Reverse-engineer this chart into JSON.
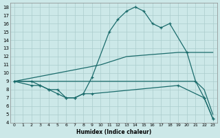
{
  "bg_color": "#cce8e8",
  "grid_color": "#aacccc",
  "line_color": "#1a6b6b",
  "xlabel": "Humidex (Indice chaleur)",
  "xlim": [
    -0.5,
    23.5
  ],
  "ylim": [
    4,
    18.5
  ],
  "xticks": [
    0,
    1,
    2,
    3,
    4,
    5,
    6,
    7,
    8,
    9,
    10,
    11,
    12,
    13,
    14,
    15,
    16,
    17,
    18,
    19,
    20,
    21,
    22,
    23
  ],
  "yticks": [
    4,
    5,
    6,
    7,
    8,
    9,
    10,
    11,
    12,
    13,
    14,
    15,
    16,
    17,
    18
  ],
  "line1_x": [
    0,
    10,
    13,
    19,
    23
  ],
  "line1_y": [
    9,
    11,
    12,
    12.5,
    12.5
  ],
  "line2_x": [
    0,
    19,
    21,
    22,
    23
  ],
  "line2_y": [
    9,
    9,
    9,
    8,
    5
  ],
  "line3_x": [
    0,
    2,
    3,
    4,
    5,
    6,
    7,
    8,
    9,
    11,
    12,
    13,
    14,
    15,
    16,
    17,
    18,
    20,
    21,
    22,
    23
  ],
  "line3_y": [
    9,
    9,
    8.5,
    8,
    8,
    7,
    7,
    7.5,
    9.5,
    15,
    16.5,
    17.5,
    18,
    17.5,
    16,
    15.5,
    16,
    12.5,
    9,
    7,
    4.5
  ],
  "line4_x": [
    0,
    2,
    3,
    4,
    5,
    6,
    7,
    8,
    9,
    19,
    22,
    23
  ],
  "line4_y": [
    9,
    8.5,
    8.5,
    8,
    7.5,
    7,
    7,
    7.5,
    7.5,
    8.5,
    7,
    4.5
  ]
}
